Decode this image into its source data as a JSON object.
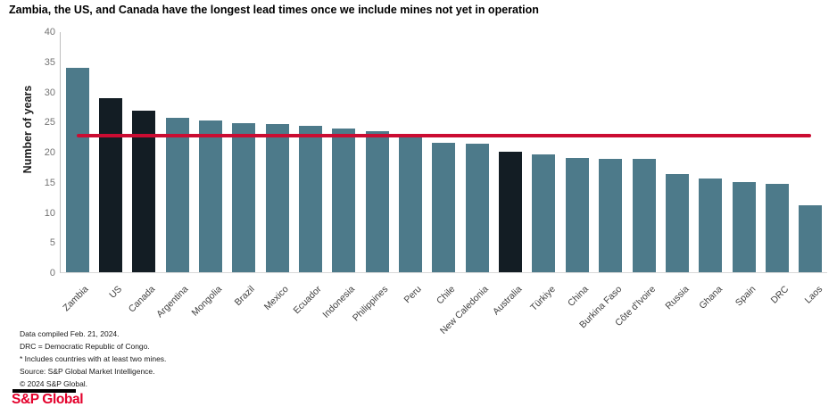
{
  "title": "Zambia, the US, and Canada have the longest lead times once we include mines not yet in operation",
  "chart_data": {
    "type": "bar",
    "categories": [
      "Zambia",
      "US",
      "Canada",
      "Argentina",
      "Mongolia",
      "Brazil",
      "Mexico",
      "Ecuador",
      "Indonesia",
      "Philippines",
      "Peru",
      "Chile",
      "New Caledonia",
      "Australia",
      "Türkiye",
      "China",
      "Burkina Faso",
      "Côte d'Ivoire",
      "Russia",
      "Ghana",
      "Spain",
      "DRC",
      "Laos"
    ],
    "values": [
      34.1,
      29.0,
      26.9,
      25.7,
      25.3,
      24.9,
      24.7,
      24.4,
      24.0,
      23.5,
      22.4,
      21.6,
      21.4,
      20.1,
      19.6,
      19.1,
      18.9,
      18.9,
      16.3,
      15.6,
      15.0,
      14.7,
      11.2
    ],
    "highlighted_categories": [
      "US",
      "Canada",
      "Australia"
    ],
    "reference_line": {
      "value": 22.8
    },
    "title": "Zambia, the US, and Canada have the longest lead times once we include mines not yet in operation",
    "xlabel": "",
    "ylabel": "Number of years",
    "ylim": [
      0,
      40
    ],
    "yticks": [
      0,
      5,
      10,
      15,
      20,
      25,
      30,
      35,
      40
    ],
    "grid": false,
    "legend": "none"
  },
  "colors": {
    "bar": "#4d7a8a",
    "bar_highlight": "#131d24",
    "reference_line": "#cb0c32",
    "logo_red": "#e4002b"
  },
  "footnotes": [
    "Data compiled Feb. 21, 2024.",
    "DRC = Democratic Republic of Congo.",
    "* Includes countries with at least two mines.",
    "Source: S&P Global Market Intelligence.",
    "© 2024 S&P Global."
  ],
  "logo": {
    "text": "S&P Global"
  }
}
